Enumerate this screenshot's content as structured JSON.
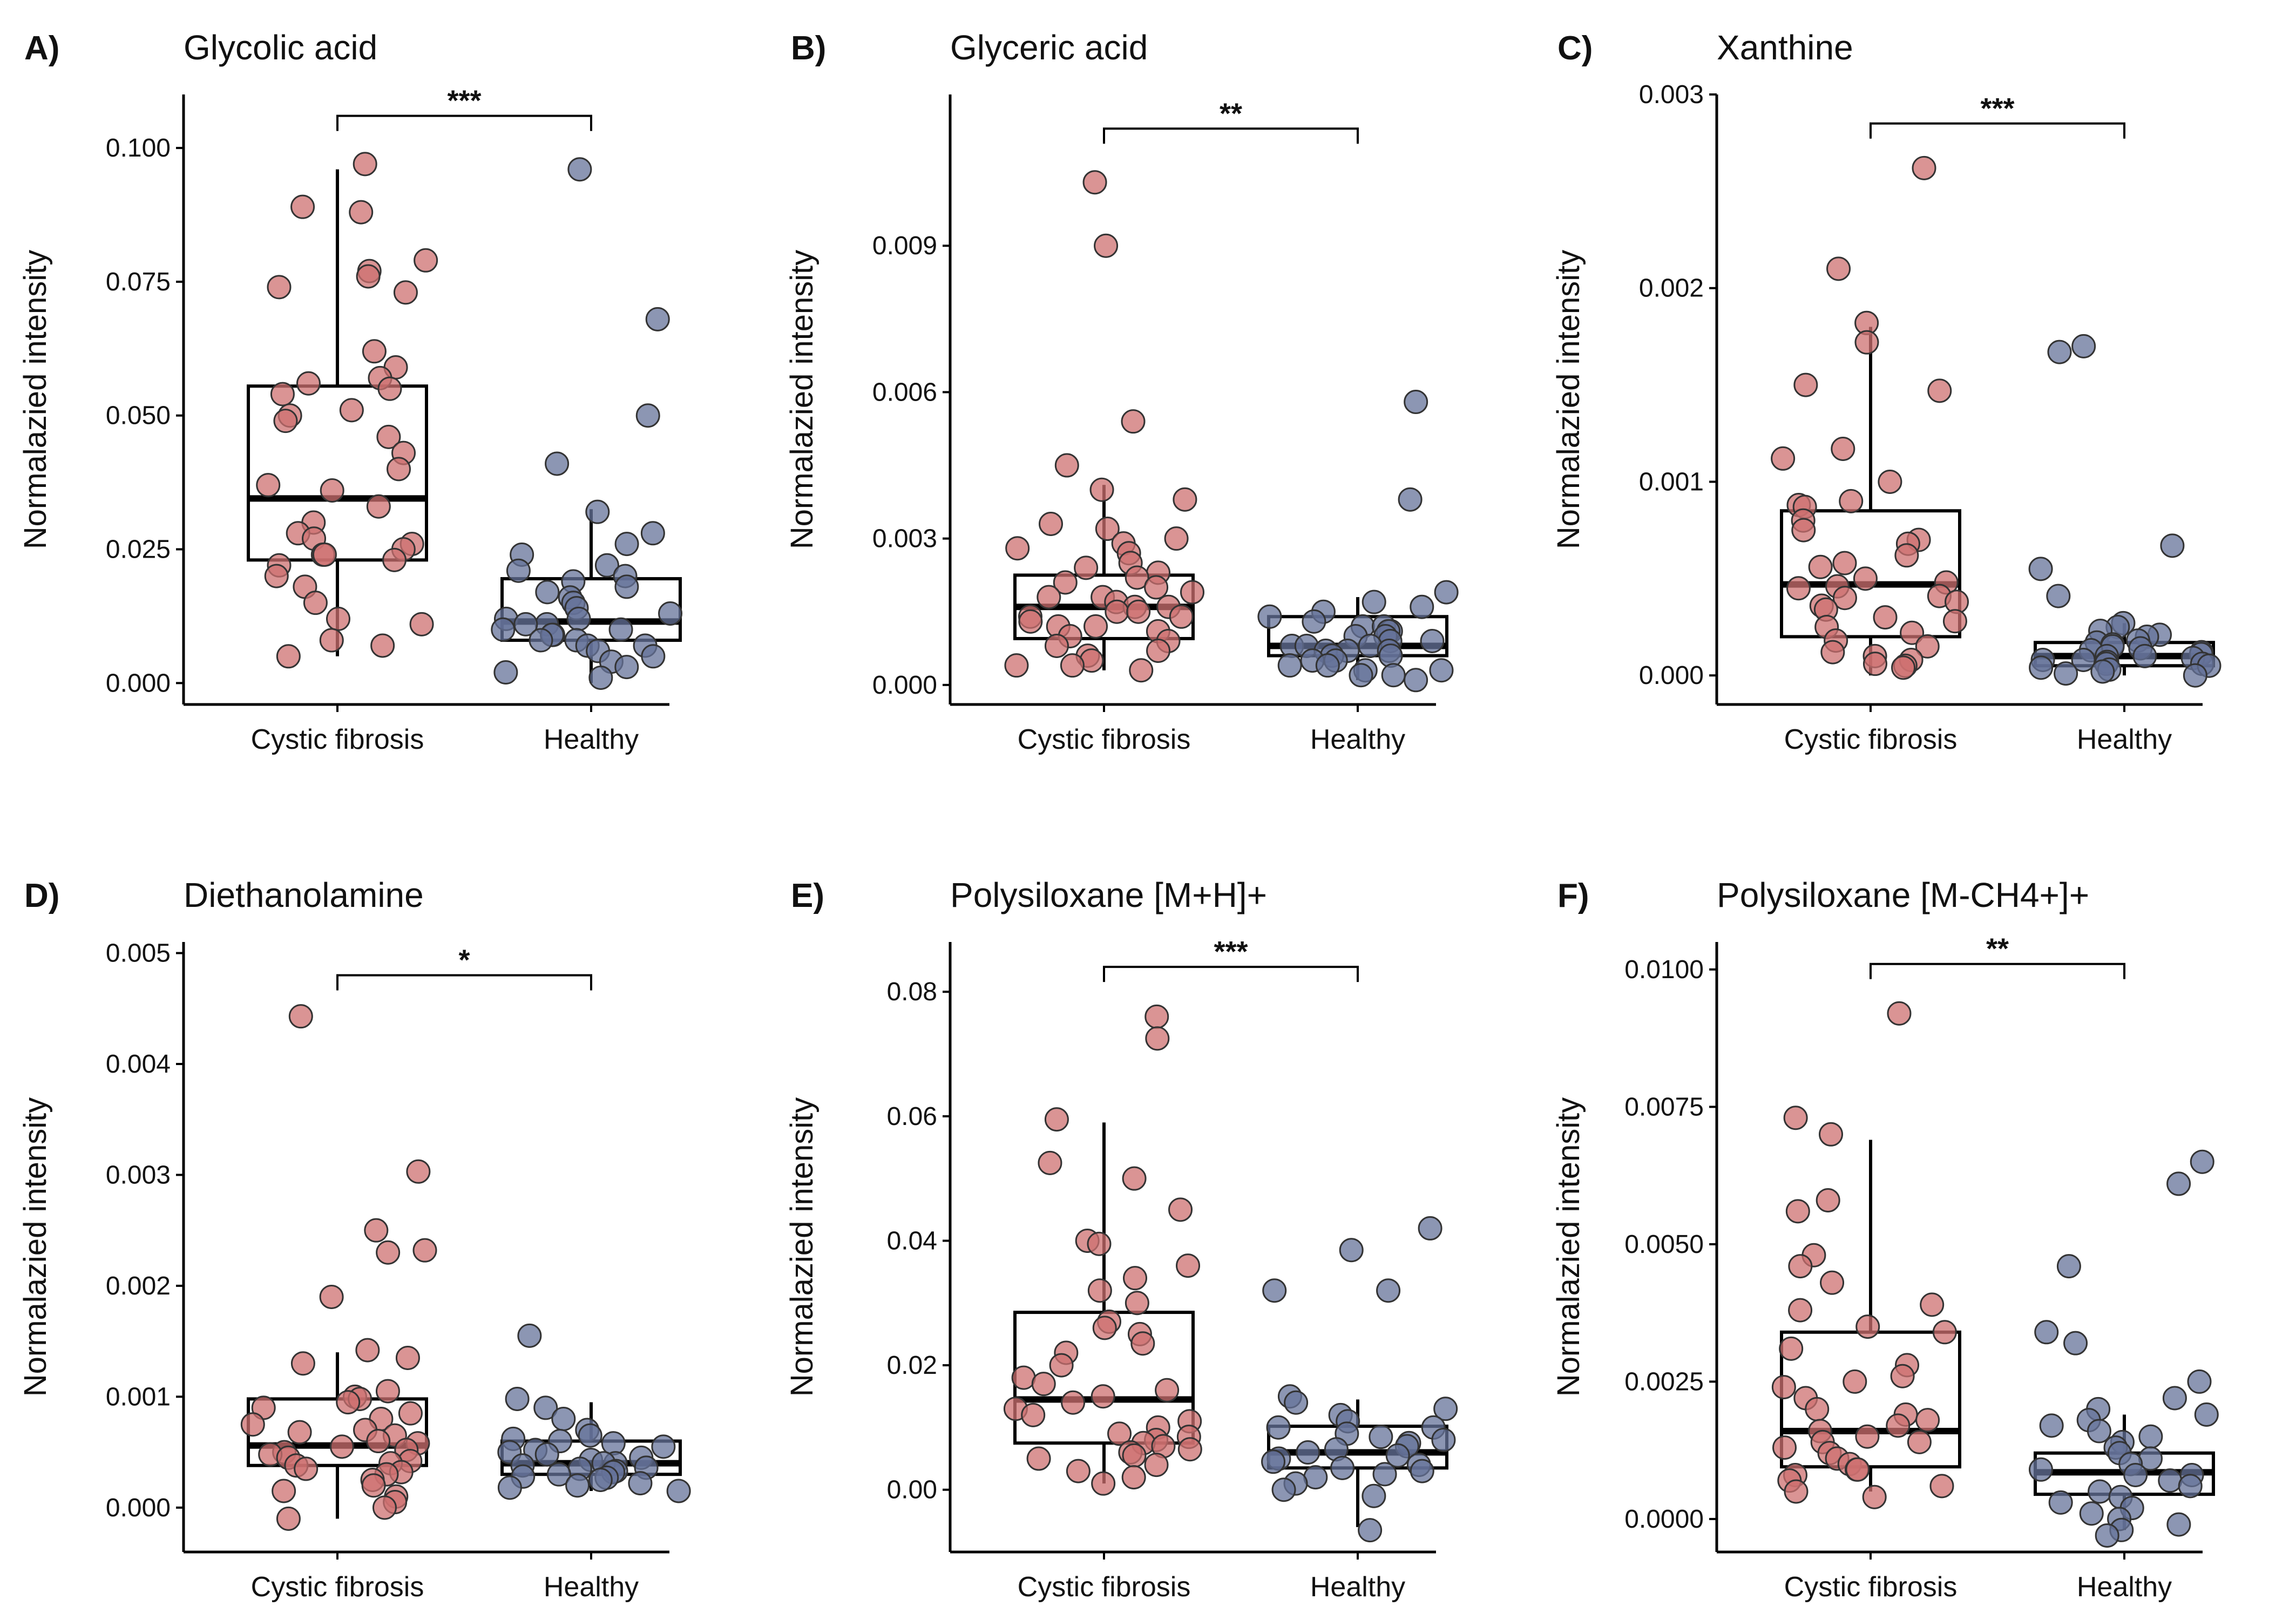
{
  "figure": {
    "colors": {
      "cf": "#cd7070",
      "healthy": "#66739a",
      "stroke": "#333333",
      "box": "#000000"
    }
  },
  "chart_data": [
    {
      "type": "box",
      "panel": "A)",
      "title": "Glycolic acid",
      "ylabel": "Normalazied intensity",
      "categories": [
        "Cystic fibrosis",
        "Healthy"
      ],
      "ylim": [
        -0.004,
        0.11
      ],
      "ticks": [
        0.0,
        0.025,
        0.05,
        0.075,
        0.1
      ],
      "tick_labels": [
        "0.000",
        "0.025",
        "0.050",
        "0.075",
        "0.100"
      ],
      "significance": "***",
      "sig_y": 0.106,
      "box": [
        {
          "whisker_low": 0.005,
          "q1": 0.023,
          "median": 0.0345,
          "q3": 0.0555,
          "whisker_high": 0.096
        },
        {
          "whisker_low": 0.0,
          "q1": 0.008,
          "median": 0.0115,
          "q3": 0.0195,
          "whisker_high": 0.0325
        }
      ],
      "points": [
        [
          0.097,
          0.089,
          0.088,
          0.079,
          0.077,
          0.076,
          0.074,
          0.073,
          0.062,
          0.059,
          0.057,
          0.056,
          0.055,
          0.054,
          0.051,
          0.05,
          0.049,
          0.046,
          0.043,
          0.04,
          0.037,
          0.036,
          0.033,
          0.03,
          0.028,
          0.027,
          0.026,
          0.025,
          0.024,
          0.024,
          0.023,
          0.022,
          0.02,
          0.018,
          0.015,
          0.012,
          0.011,
          0.008,
          0.007,
          0.005
        ],
        [
          0.096,
          0.068,
          0.05,
          0.041,
          0.032,
          0.028,
          0.026,
          0.024,
          0.022,
          0.021,
          0.02,
          0.019,
          0.018,
          0.017,
          0.016,
          0.015,
          0.014,
          0.013,
          0.012,
          0.012,
          0.011,
          0.011,
          0.01,
          0.01,
          0.009,
          0.009,
          0.008,
          0.008,
          0.007,
          0.007,
          0.006,
          0.005,
          0.004,
          0.003,
          0.002,
          0.001
        ]
      ]
    },
    {
      "type": "box",
      "panel": "B)",
      "title": "Glyceric acid",
      "ylabel": "Normalazied intensity",
      "categories": [
        "Cystic fibrosis",
        "Healthy"
      ],
      "ylim": [
        -0.0004,
        0.0121
      ],
      "ticks": [
        0.0,
        0.003,
        0.006,
        0.009
      ],
      "tick_labels": [
        "0.000",
        "0.003",
        "0.006",
        "0.009"
      ],
      "significance": "**",
      "sig_y": 0.0114,
      "box": [
        {
          "whisker_low": 0.0003,
          "q1": 0.00095,
          "median": 0.0016,
          "q3": 0.00225,
          "whisker_high": 0.0041
        },
        {
          "whisker_low": 0.0001,
          "q1": 0.0006,
          "median": 0.0008,
          "q3": 0.0014,
          "whisker_high": 0.0018
        }
      ],
      "points": [
        [
          0.0103,
          0.009,
          0.0054,
          0.0045,
          0.004,
          0.0038,
          0.0033,
          0.0032,
          0.003,
          0.0029,
          0.0028,
          0.0027,
          0.0025,
          0.0024,
          0.0023,
          0.0022,
          0.0021,
          0.002,
          0.0019,
          0.0018,
          0.0018,
          0.0017,
          0.0016,
          0.0016,
          0.0015,
          0.0015,
          0.0014,
          0.0014,
          0.0013,
          0.0012,
          0.0012,
          0.0011,
          0.001,
          0.0009,
          0.0008,
          0.0007,
          0.0006,
          0.0005,
          0.0004,
          0.0004,
          0.0003
        ],
        [
          0.0058,
          0.0038,
          0.0019,
          0.0017,
          0.0016,
          0.0015,
          0.0014,
          0.0013,
          0.0012,
          0.0012,
          0.0011,
          0.0011,
          0.001,
          0.001,
          0.0009,
          0.0009,
          0.0008,
          0.0008,
          0.0008,
          0.0007,
          0.0007,
          0.0007,
          0.0006,
          0.0006,
          0.0005,
          0.0005,
          0.0004,
          0.0004,
          0.0003,
          0.0003,
          0.0002,
          0.0002,
          0.0001
        ]
      ]
    },
    {
      "type": "box",
      "panel": "C)",
      "title": "Xanthine",
      "ylabel": "Normalazied intensity",
      "categories": [
        "Cystic fibrosis",
        "Healthy"
      ],
      "ylim": [
        -0.00015,
        0.003
      ],
      "ticks": [
        0.0,
        0.001,
        0.002,
        0.003
      ],
      "tick_labels": [
        "0.000",
        "0.001",
        "0.002",
        "0.003"
      ],
      "significance": "***",
      "sig_y": 0.00285,
      "box": [
        {
          "whisker_low": 0.0,
          "q1": 0.0002,
          "median": 0.00047,
          "q3": 0.00085,
          "whisker_high": 0.0018
        },
        {
          "whisker_low": 0.0,
          "q1": 5e-05,
          "median": 0.0001,
          "q3": 0.00017,
          "whisker_high": 0.00027
        }
      ],
      "points": [
        [
          0.00262,
          0.0021,
          0.00182,
          0.00172,
          0.0015,
          0.00147,
          0.00117,
          0.00112,
          0.001,
          0.0009,
          0.00088,
          0.00087,
          0.0008,
          0.00075,
          0.0007,
          0.00068,
          0.00062,
          0.00058,
          0.00056,
          0.0005,
          0.00048,
          0.00046,
          0.00045,
          0.00041,
          0.0004,
          0.00038,
          0.00036,
          0.00034,
          0.0003,
          0.00028,
          0.00025,
          0.00022,
          0.00018,
          0.00015,
          0.00012,
          0.0001,
          8e-05,
          6e-05,
          5e-05,
          4e-05
        ],
        [
          0.0017,
          0.00167,
          0.00067,
          0.00055,
          0.00041,
          0.00027,
          0.00025,
          0.00023,
          0.00021,
          0.0002,
          0.00018,
          0.00017,
          0.00016,
          0.00015,
          0.00014,
          0.00013,
          0.00012,
          0.00011,
          0.0001,
          0.0001,
          9e-05,
          8e-05,
          8e-05,
          7e-05,
          6e-05,
          6e-05,
          5e-05,
          4e-05,
          3e-05,
          2e-05,
          1e-05,
          0.0
        ]
      ]
    },
    {
      "type": "box",
      "panel": "D)",
      "title": "Diethanolamine",
      "ylabel": "Normalazied intensity",
      "categories": [
        "Cystic fibrosis",
        "Healthy"
      ],
      "ylim": [
        -0.0004,
        0.0051
      ],
      "ticks": [
        0.0,
        0.001,
        0.002,
        0.003,
        0.004,
        0.005
      ],
      "tick_labels": [
        "0.000",
        "0.001",
        "0.002",
        "0.003",
        "0.004",
        "0.005"
      ],
      "significance": "*",
      "sig_y": 0.0048,
      "box": [
        {
          "whisker_low": -0.0001,
          "q1": 0.00038,
          "median": 0.00056,
          "q3": 0.00098,
          "whisker_high": 0.0014
        },
        {
          "whisker_low": 0.00015,
          "q1": 0.0003,
          "median": 0.0004,
          "q3": 0.0006,
          "whisker_high": 0.00095
        }
      ],
      "points": [
        [
          0.00443,
          0.00303,
          0.0025,
          0.00232,
          0.0023,
          0.0019,
          0.00142,
          0.00135,
          0.0013,
          0.00105,
          0.001,
          0.00098,
          0.00095,
          0.0009,
          0.00085,
          0.0008,
          0.00075,
          0.0007,
          0.00068,
          0.00065,
          0.0006,
          0.00058,
          0.00055,
          0.00052,
          0.0005,
          0.00048,
          0.00045,
          0.00042,
          0.0004,
          0.00038,
          0.00035,
          0.00032,
          0.0003,
          0.00025,
          0.0002,
          0.00015,
          0.0001,
          5e-05,
          0.0,
          -0.0001
        ],
        [
          0.00155,
          0.00098,
          0.0009,
          0.0008,
          0.0007,
          0.00065,
          0.00062,
          0.0006,
          0.00058,
          0.00055,
          0.00052,
          0.0005,
          0.00048,
          0.00045,
          0.00043,
          0.0004,
          0.0004,
          0.00038,
          0.00036,
          0.00035,
          0.00033,
          0.00032,
          0.0003,
          0.00028,
          0.00027,
          0.00025,
          0.00022,
          0.0002,
          0.00018,
          0.00015
        ]
      ]
    },
    {
      "type": "box",
      "panel": "E)",
      "title": "Polysiloxane [M+H]+",
      "ylabel": "Normalazied intensity",
      "categories": [
        "Cystic fibrosis",
        "Healthy"
      ],
      "ylim": [
        -0.01,
        0.088
      ],
      "ticks": [
        0.0,
        0.02,
        0.04,
        0.06,
        0.08
      ],
      "tick_labels": [
        "0.00",
        "0.02",
        "0.04",
        "0.06",
        "0.08"
      ],
      "significance": "***",
      "sig_y": 0.084,
      "box": [
        {
          "whisker_low": 0.001,
          "q1": 0.0075,
          "median": 0.0145,
          "q3": 0.0285,
          "whisker_high": 0.059
        },
        {
          "whisker_low": -0.006,
          "q1": 0.0035,
          "median": 0.006,
          "q3": 0.0102,
          "whisker_high": 0.0145
        }
      ],
      "points": [
        [
          0.076,
          0.0725,
          0.0595,
          0.0525,
          0.05,
          0.045,
          0.04,
          0.0395,
          0.036,
          0.034,
          0.032,
          0.03,
          0.027,
          0.026,
          0.025,
          0.0235,
          0.022,
          0.02,
          0.018,
          0.017,
          0.016,
          0.015,
          0.014,
          0.013,
          0.012,
          0.011,
          0.01,
          0.009,
          0.0085,
          0.008,
          0.0075,
          0.007,
          0.0065,
          0.006,
          0.0055,
          0.005,
          0.004,
          0.003,
          0.002,
          0.001
        ],
        [
          0.042,
          0.0385,
          0.032,
          0.032,
          0.015,
          0.014,
          0.013,
          0.012,
          0.011,
          0.01,
          0.01,
          0.009,
          0.0085,
          0.008,
          0.0075,
          0.007,
          0.0065,
          0.006,
          0.0055,
          0.005,
          0.0045,
          0.004,
          0.0035,
          0.003,
          0.0025,
          0.002,
          0.001,
          0.0,
          -0.001,
          -0.0065
        ]
      ]
    },
    {
      "type": "box",
      "panel": "F)",
      "title": "Polysiloxane [M-CH4+]+",
      "ylabel": "Normalazied intensity",
      "categories": [
        "Cystic fibrosis",
        "Healthy"
      ],
      "ylim": [
        -0.0006,
        0.0105
      ],
      "ticks": [
        0.0,
        0.0025,
        0.005,
        0.0075,
        0.01
      ],
      "tick_labels": [
        "0.0000",
        "0.0025",
        "0.0050",
        "0.0075",
        "0.0100"
      ],
      "significance": "**",
      "sig_y": 0.0101,
      "box": [
        {
          "whisker_low": 0.0005,
          "q1": 0.00095,
          "median": 0.0016,
          "q3": 0.0034,
          "whisker_high": 0.0069
        },
        {
          "whisker_low": -0.0002,
          "q1": 0.00045,
          "median": 0.00085,
          "q3": 0.0012,
          "whisker_high": 0.0019
        }
      ],
      "points": [
        [
          0.0092,
          0.0073,
          0.007,
          0.0058,
          0.0056,
          0.0048,
          0.0046,
          0.0043,
          0.0039,
          0.0038,
          0.0035,
          0.0034,
          0.0031,
          0.0028,
          0.0026,
          0.0025,
          0.0024,
          0.0022,
          0.002,
          0.0019,
          0.0018,
          0.0017,
          0.0016,
          0.0015,
          0.0014,
          0.0014,
          0.0013,
          0.0012,
          0.0011,
          0.001,
          0.0009,
          0.0009,
          0.0008,
          0.0007,
          0.0006,
          0.0005,
          0.0004
        ],
        [
          0.0065,
          0.0061,
          0.0046,
          0.0034,
          0.0032,
          0.0025,
          0.0022,
          0.002,
          0.0019,
          0.0018,
          0.0017,
          0.0016,
          0.0015,
          0.0014,
          0.0013,
          0.0012,
          0.0011,
          0.001,
          0.0009,
          0.0008,
          0.0008,
          0.0007,
          0.0006,
          0.0005,
          0.0004,
          0.0003,
          0.0002,
          0.0001,
          0.0,
          -0.0001,
          -0.0002,
          -0.0003
        ]
      ]
    }
  ]
}
